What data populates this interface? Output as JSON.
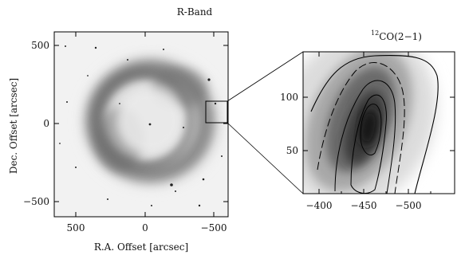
{
  "left_panel": {
    "title": "R-Band",
    "xlabel": "R.A. Offset [arcsec]",
    "ylabel": "Dec. Offset [arcsec]",
    "x_ticks": [
      "500",
      "0",
      "−500"
    ],
    "y_ticks": [
      "500",
      "0",
      "−500"
    ]
  },
  "right_panel": {
    "title_sup": "12",
    "title_main": "CO(2−1)",
    "x_ticks": [
      "−400",
      "−450",
      "−500"
    ],
    "y_ticks": [
      "100",
      "50"
    ]
  },
  "colors": {
    "ink": "#111111",
    "frame": "#000000"
  }
}
